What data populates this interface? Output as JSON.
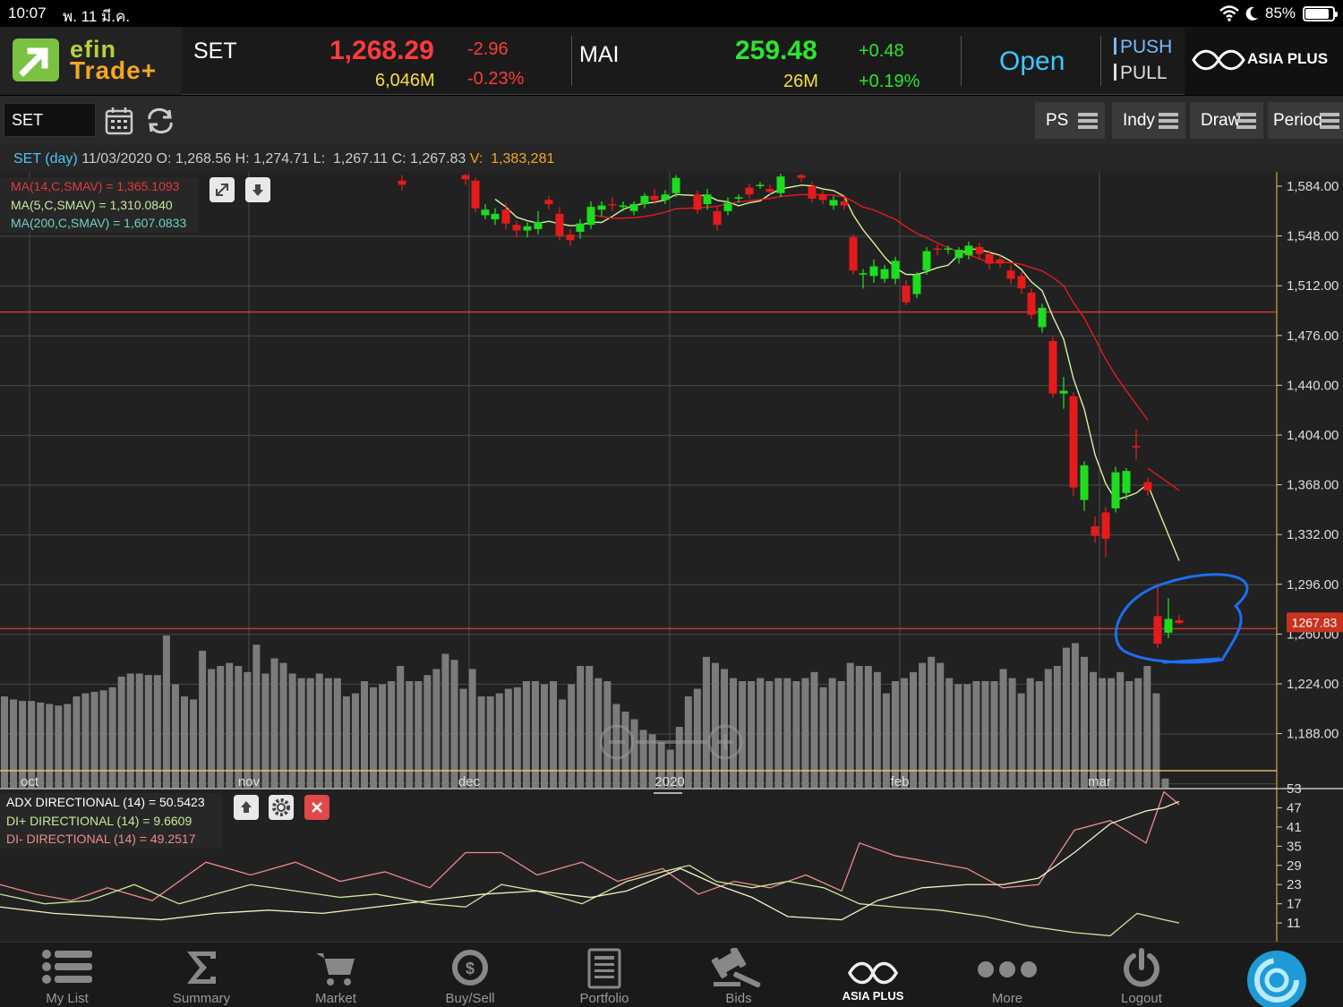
{
  "status_bar": {
    "time": "10:07",
    "date": "พ. 11 มี.ค.",
    "battery": "85%",
    "battery_level": 0.85
  },
  "header": {
    "logo_line1": "efin",
    "logo_line2": "Trade+",
    "set": {
      "name": "SET",
      "value": "1,268.29",
      "change": "-2.96",
      "volume": "6,046M",
      "pct": "-0.23%"
    },
    "mai": {
      "name": "MAI",
      "value": "259.48",
      "change": "+0.48",
      "volume": "26M",
      "pct": "+0.19%"
    },
    "market_status": "Open",
    "push": "PUSH",
    "pull": "PULL",
    "broker": "ASIA PLUS"
  },
  "toolbar": {
    "symbol": "SET",
    "ps": "PS",
    "indy": "Indy",
    "draw": "Draw",
    "period": "Period"
  },
  "info_line": {
    "symbol": "SET (day)",
    "date": "11/03/2020",
    "o_label": "O:",
    "o": "1,268.56",
    "h_label": "H:",
    "h": "1,274.71",
    "l_label": "L:",
    "l": "1,267.11",
    "c_label": "C:",
    "c": "1,267.83",
    "v_label": "V:",
    "v": "1,383,281"
  },
  "ma_legend": {
    "ma14": "MA(14,C,SMAV) = 1,365.1093",
    "ma5": "MA(5,C,SMAV) = 1,310.0840",
    "ma200": "MA(200,C,SMAV) = 1,607.0833"
  },
  "adx_legend": {
    "adx": "ADX DIRECTIONAL (14) = 50.5423",
    "di_plus": "DI+ DIRECTIONAL (14) = 9.6609",
    "di_minus": "DI- DIRECTIONAL (14) = 49.2517"
  },
  "colors": {
    "up": "#1edc1e",
    "down": "#e51b1b",
    "ma14": "#e51b1b",
    "ma5": "#d4f2a0",
    "annotation": "#1e6ff0"
  },
  "chart_data": [
    {
      "type": "candlestick",
      "title": "SET (day)",
      "y_axis_ticks": [
        "1,584.00",
        "1,548.00",
        "1,512.00",
        "1,476.00",
        "1,440.00",
        "1,404.00",
        "1,368.00",
        "1,332.00",
        "1,296.00",
        "1,260.00",
        "1,224.00",
        "1,188.00"
      ],
      "price_label": "1267.83",
      "x_axis_labels": [
        "oct",
        "nov",
        "dec",
        "2020",
        "feb",
        "mar"
      ],
      "ylim": [
        1170,
        1592
      ],
      "candles": [
        {
          "x": 449,
          "o": 1588,
          "c": 1585,
          "h": 1592,
          "l": 1581
        },
        {
          "x": 520,
          "o": 1592,
          "c": 1589,
          "h": 1593,
          "l": 1585
        },
        {
          "x": 531,
          "o": 1588,
          "c": 1568,
          "h": 1590,
          "l": 1565
        },
        {
          "x": 542,
          "o": 1563,
          "c": 1567,
          "h": 1571,
          "l": 1560
        },
        {
          "x": 553,
          "o": 1560,
          "c": 1564,
          "h": 1568,
          "l": 1556
        },
        {
          "x": 565,
          "o": 1567,
          "c": 1557,
          "h": 1572,
          "l": 1553
        },
        {
          "x": 577,
          "o": 1556,
          "c": 1552,
          "h": 1559,
          "l": 1547
        },
        {
          "x": 589,
          "o": 1552,
          "c": 1555,
          "h": 1558,
          "l": 1547
        },
        {
          "x": 601,
          "o": 1553,
          "c": 1558,
          "h": 1566,
          "l": 1549
        },
        {
          "x": 613,
          "o": 1574,
          "c": 1571,
          "h": 1577,
          "l": 1567
        },
        {
          "x": 625,
          "o": 1564,
          "c": 1548,
          "h": 1569,
          "l": 1545
        },
        {
          "x": 637,
          "o": 1549,
          "c": 1545,
          "h": 1553,
          "l": 1541
        },
        {
          "x": 648,
          "o": 1551,
          "c": 1557,
          "h": 1560,
          "l": 1546
        },
        {
          "x": 660,
          "o": 1556,
          "c": 1569,
          "h": 1573,
          "l": 1553
        },
        {
          "x": 672,
          "o": 1567,
          "c": 1570,
          "h": 1573,
          "l": 1562
        },
        {
          "x": 684,
          "o": 1571,
          "c": 1570,
          "h": 1576,
          "l": 1566
        },
        {
          "x": 696,
          "o": 1569,
          "c": 1570,
          "h": 1573,
          "l": 1566
        },
        {
          "x": 708,
          "o": 1566,
          "c": 1571,
          "h": 1573,
          "l": 1563
        },
        {
          "x": 720,
          "o": 1571,
          "c": 1577,
          "h": 1579,
          "l": 1568
        },
        {
          "x": 731,
          "o": 1577,
          "c": 1574,
          "h": 1582,
          "l": 1571
        },
        {
          "x": 743,
          "o": 1574,
          "c": 1578,
          "h": 1581,
          "l": 1571
        },
        {
          "x": 755,
          "o": 1579,
          "c": 1590,
          "h": 1592,
          "l": 1576
        },
        {
          "x": 779,
          "o": 1578,
          "c": 1567,
          "h": 1581,
          "l": 1564
        },
        {
          "x": 790,
          "o": 1571,
          "c": 1578,
          "h": 1582,
          "l": 1567
        },
        {
          "x": 801,
          "o": 1566,
          "c": 1556,
          "h": 1569,
          "l": 1552
        },
        {
          "x": 813,
          "o": 1566,
          "c": 1572,
          "h": 1576,
          "l": 1563
        },
        {
          "x": 825,
          "o": 1575,
          "c": 1576,
          "h": 1578,
          "l": 1572
        },
        {
          "x": 837,
          "o": 1583,
          "c": 1578,
          "h": 1586,
          "l": 1575
        },
        {
          "x": 849,
          "o": 1584,
          "c": 1585,
          "h": 1587,
          "l": 1582
        },
        {
          "x": 860,
          "o": 1582,
          "c": 1580,
          "h": 1585,
          "l": 1578
        },
        {
          "x": 872,
          "o": 1579,
          "c": 1591,
          "h": 1593,
          "l": 1576
        },
        {
          "x": 895,
          "o": 1592,
          "c": 1590,
          "h": 1593,
          "l": 1587
        },
        {
          "x": 907,
          "o": 1584,
          "c": 1575,
          "h": 1587,
          "l": 1572
        },
        {
          "x": 919,
          "o": 1578,
          "c": 1574,
          "h": 1581,
          "l": 1571
        },
        {
          "x": 931,
          "o": 1570,
          "c": 1574,
          "h": 1577,
          "l": 1567
        },
        {
          "x": 943,
          "o": 1573,
          "c": 1570,
          "h": 1576,
          "l": 1567
        },
        {
          "x": 953,
          "o": 1547,
          "c": 1523,
          "h": 1549,
          "l": 1520
        },
        {
          "x": 964,
          "o": 1520,
          "c": 1521,
          "h": 1524,
          "l": 1510
        },
        {
          "x": 976,
          "o": 1519,
          "c": 1526,
          "h": 1531,
          "l": 1514
        },
        {
          "x": 988,
          "o": 1517,
          "c": 1524,
          "h": 1527,
          "l": 1514
        },
        {
          "x": 1000,
          "o": 1517,
          "c": 1530,
          "h": 1533,
          "l": 1513
        },
        {
          "x": 1012,
          "o": 1512,
          "c": 1500,
          "h": 1516,
          "l": 1498
        },
        {
          "x": 1024,
          "o": 1506,
          "c": 1520,
          "h": 1522,
          "l": 1503
        },
        {
          "x": 1035,
          "o": 1523,
          "c": 1537,
          "h": 1540,
          "l": 1520
        },
        {
          "x": 1047,
          "o": 1539,
          "c": 1538,
          "h": 1542,
          "l": 1534
        },
        {
          "x": 1059,
          "o": 1538,
          "c": 1539,
          "h": 1541,
          "l": 1535
        },
        {
          "x": 1071,
          "o": 1532,
          "c": 1538,
          "h": 1540,
          "l": 1528
        },
        {
          "x": 1082,
          "o": 1534,
          "c": 1541,
          "h": 1544,
          "l": 1531
        },
        {
          "x": 1094,
          "o": 1540,
          "c": 1535,
          "h": 1543,
          "l": 1531
        },
        {
          "x": 1105,
          "o": 1535,
          "c": 1528,
          "h": 1538,
          "l": 1524
        },
        {
          "x": 1117,
          "o": 1531,
          "c": 1528,
          "h": 1534,
          "l": 1525
        },
        {
          "x": 1129,
          "o": 1523,
          "c": 1517,
          "h": 1527,
          "l": 1513
        },
        {
          "x": 1141,
          "o": 1519,
          "c": 1510,
          "h": 1522,
          "l": 1506
        },
        {
          "x": 1152,
          "o": 1507,
          "c": 1491,
          "h": 1510,
          "l": 1488
        },
        {
          "x": 1164,
          "o": 1482,
          "c": 1496,
          "h": 1499,
          "l": 1478
        },
        {
          "x": 1176,
          "o": 1472,
          "c": 1434,
          "h": 1475,
          "l": 1431
        },
        {
          "x": 1188,
          "o": 1434,
          "c": 1436,
          "h": 1446,
          "l": 1423
        },
        {
          "x": 1199,
          "o": 1432,
          "c": 1366,
          "h": 1435,
          "l": 1360
        },
        {
          "x": 1211,
          "o": 1357,
          "c": 1382,
          "h": 1385,
          "l": 1349
        },
        {
          "x": 1223,
          "o": 1338,
          "c": 1331,
          "h": 1345,
          "l": 1326
        },
        {
          "x": 1235,
          "o": 1348,
          "c": 1329,
          "h": 1352,
          "l": 1316
        },
        {
          "x": 1246,
          "o": 1351,
          "c": 1377,
          "h": 1381,
          "l": 1348
        },
        {
          "x": 1258,
          "o": 1362,
          "c": 1378,
          "h": 1380,
          "l": 1357
        },
        {
          "x": 1269,
          "o": 1396,
          "c": 1395,
          "h": 1408,
          "l": 1386
        },
        {
          "x": 1282,
          "o": 1370,
          "c": 1364,
          "h": 1373,
          "l": 1360
        },
        {
          "x": 1293,
          "o": 1273,
          "c": 1253,
          "h": 1297,
          "l": 1250
        },
        {
          "x": 1305,
          "o": 1261,
          "c": 1271,
          "h": 1286,
          "l": 1257
        },
        {
          "x": 1317,
          "o": 1270,
          "c": 1268,
          "h": 1274,
          "l": 1267
        }
      ]
    },
    {
      "type": "bar",
      "title": "Volume",
      "values": [
        0.6,
        0.58,
        0.57,
        0.57,
        0.56,
        0.55,
        0.54,
        0.55,
        0.6,
        0.62,
        0.63,
        0.64,
        0.66,
        0.73,
        0.75,
        0.75,
        0.74,
        0.74,
        1.0,
        0.68,
        0.6,
        0.58,
        0.9,
        0.78,
        0.8,
        0.82,
        0.8,
        0.76,
        0.94,
        0.75,
        0.85,
        0.82,
        0.75,
        0.72,
        0.72,
        0.75,
        0.72,
        0.72,
        0.6,
        0.62,
        0.7,
        0.66,
        0.68,
        0.7,
        0.8,
        0.7,
        0.7,
        0.74,
        0.78,
        0.88,
        0.84,
        0.65,
        0.78,
        0.6,
        0.6,
        0.62,
        0.65,
        0.66,
        0.7,
        0.7,
        0.68,
        0.7,
        0.58,
        0.68,
        0.8,
        0.8,
        0.72,
        0.7,
        0.55,
        0.5,
        0.45,
        0.38,
        0.35,
        0.3,
        0.25,
        0.4,
        0.6,
        0.65,
        0.86,
        0.82,
        0.78,
        0.72,
        0.7,
        0.7,
        0.72,
        0.7,
        0.72,
        0.72,
        0.7,
        0.72,
        0.76,
        0.66,
        0.72,
        0.7,
        0.82,
        0.8,
        0.8,
        0.76,
        0.62,
        0.7,
        0.72,
        0.76,
        0.82,
        0.86,
        0.82,
        0.72,
        0.68,
        0.68,
        0.7,
        0.7,
        0.7,
        0.78,
        0.72,
        0.62,
        0.72,
        0.7,
        0.78,
        0.8,
        0.92,
        0.95,
        0.86,
        0.76,
        0.72,
        0.72,
        0.76,
        0.7,
        0.72,
        0.8,
        0.62,
        0.06
      ]
    },
    {
      "type": "line",
      "title": "ADX DIRECTIONAL (14)",
      "y_axis_ticks": [
        "53",
        "47",
        "41",
        "35",
        "29",
        "23",
        "17",
        "11"
      ],
      "ylim": [
        6,
        53
      ]
    }
  ]
}
